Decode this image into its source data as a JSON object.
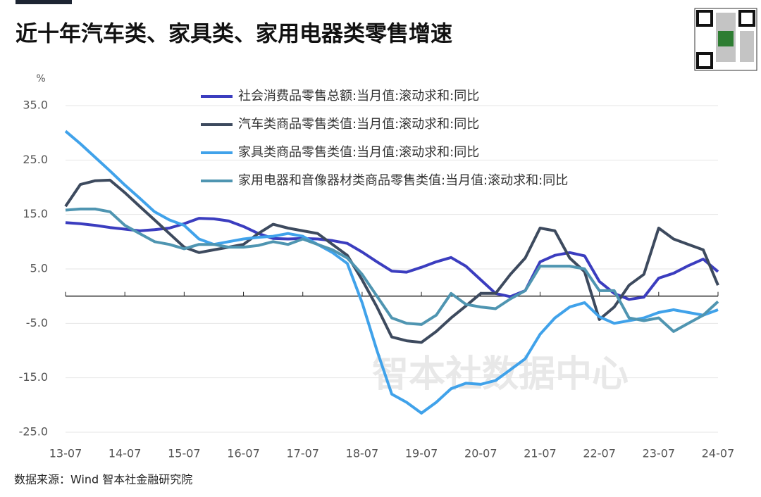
{
  "chart_data": {
    "type": "line",
    "title": "近十年汽车类、家具类、家用电器类零售增速",
    "y_unit": "%",
    "source": "数据来源：Wind 智本社金融研究院",
    "watermark": "智本社数据中心",
    "categories": [
      "13-07",
      null,
      null,
      null,
      "14-07",
      null,
      null,
      null,
      "15-07",
      null,
      null,
      null,
      "16-07",
      null,
      null,
      null,
      "17-07",
      null,
      null,
      null,
      "18-07",
      null,
      null,
      null,
      "19-07",
      null,
      null,
      null,
      "20-07",
      null,
      null,
      null,
      "21-07",
      null,
      null,
      null,
      "22-07",
      null,
      null,
      null,
      "23-07",
      null,
      null,
      null,
      "24-07"
    ],
    "ylim": [
      -25,
      35
    ],
    "yticks": [
      {
        "value": 35,
        "label": "35.0"
      },
      {
        "value": 25,
        "label": "25.0"
      },
      {
        "value": 15,
        "label": "15.0"
      },
      {
        "value": 5,
        "label": "5.0"
      },
      {
        "value": -5,
        "label": "-5.0"
      },
      {
        "value": -15,
        "label": "-15.0"
      },
      {
        "value": -25,
        "label": "-25.0"
      }
    ],
    "grid": true,
    "series": [
      {
        "name": "社会消费品零售总额:当月值:滚动求和:同比",
        "color": "#3b3dbf",
        "values": [
          13.5,
          13.3,
          13.0,
          12.6,
          12.3,
          12.0,
          12.2,
          12.5,
          13.3,
          14.3,
          14.2,
          13.8,
          12.8,
          11.5,
          10.6,
          10.5,
          10.6,
          10.5,
          10.2,
          9.7,
          8.1,
          6.3,
          4.6,
          4.4,
          5.3,
          6.3,
          7.1,
          5.5,
          3.0,
          0.5,
          -0.1,
          1.0,
          6.3,
          7.5,
          8.0,
          7.4,
          2.7,
          0.5,
          -0.6,
          -0.2,
          3.3,
          4.2,
          5.6,
          6.8,
          4.5
        ]
      },
      {
        "name": "汽车类商品零售类值:当月值:滚动求和:同比",
        "color": "#3d4a5e",
        "values": [
          16.5,
          20.5,
          21.2,
          21.3,
          19.0,
          16.5,
          14.0,
          11.5,
          9.0,
          8.0,
          8.5,
          9.0,
          9.5,
          11.5,
          13.2,
          12.5,
          12.0,
          11.5,
          9.5,
          7.5,
          3.0,
          -2.0,
          -7.5,
          -8.2,
          -8.5,
          -6.5,
          -4.0,
          -1.8,
          0.5,
          0.5,
          4.0,
          7.0,
          12.5,
          12.0,
          7.0,
          4.5,
          -4.3,
          -2.0,
          2.0,
          4.0,
          12.5,
          10.5,
          9.5,
          8.5,
          2.0
        ]
      },
      {
        "name": "家具类商品零售类值:当月值:滚动求和:同比",
        "color": "#40a2ea",
        "values": [
          30.3,
          28.0,
          25.5,
          23.0,
          20.4,
          18.0,
          15.5,
          14.0,
          13.0,
          10.5,
          9.5,
          10.0,
          10.5,
          10.8,
          11.0,
          11.5,
          11.0,
          9.5,
          8.0,
          6.0,
          -1.2,
          -10.0,
          -18.0,
          -19.5,
          -21.5,
          -19.5,
          -17.0,
          -16.0,
          -16.2,
          -15.5,
          -13.5,
          -11.5,
          -7.0,
          -4.0,
          -2.0,
          -1.2,
          -3.8,
          -5.0,
          -4.5,
          -4.0,
          -3.0,
          -2.5,
          -3.0,
          -3.5,
          -2.5
        ]
      },
      {
        "name": "家用电器和音像器材类商品零售类值:当月值:滚动求和:同比",
        "color": "#4f95b1",
        "values": [
          15.8,
          16.0,
          16.0,
          15.5,
          13.0,
          11.5,
          10.0,
          9.5,
          8.7,
          9.5,
          9.5,
          9.0,
          9.0,
          9.3,
          10.0,
          9.5,
          10.5,
          9.5,
          8.5,
          7.0,
          4.0,
          0.0,
          -4.0,
          -5.0,
          -5.2,
          -3.5,
          0.5,
          -1.5,
          -2.0,
          -2.3,
          -0.5,
          1.0,
          5.5,
          5.5,
          5.5,
          5.0,
          1.0,
          1.0,
          -4.0,
          -4.5,
          -4.0,
          -6.5,
          -5.0,
          -3.5,
          -1.0
        ]
      }
    ]
  }
}
